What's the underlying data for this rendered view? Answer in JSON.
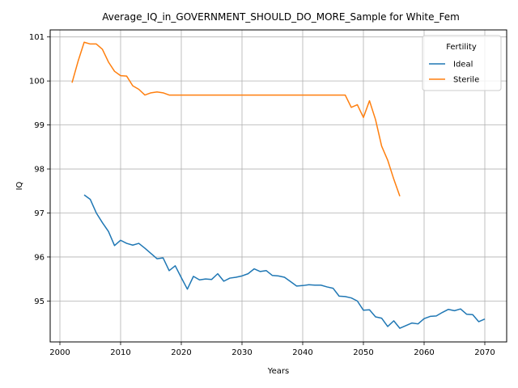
{
  "chart_data": {
    "type": "line",
    "title": "Average_IQ_in_GOVERNMENT_SHOULD_DO_MORE_Sample for White_Fem",
    "xlabel": "Years",
    "ylabel": "IQ",
    "xlim": [
      1998.4,
      2073.6
    ],
    "ylim": [
      94.07,
      101.16
    ],
    "x_ticks": [
      2000,
      2010,
      2020,
      2030,
      2040,
      2050,
      2060,
      2070
    ],
    "y_ticks": [
      95,
      96,
      97,
      98,
      99,
      100,
      101
    ],
    "grid": true,
    "legend": {
      "title": "Fertility",
      "position": "top-right"
    },
    "series": [
      {
        "name": "Ideal",
        "color": "#1f77b4",
        "points": [
          [
            2004,
            97.41
          ],
          [
            2005,
            97.31
          ],
          [
            2006,
            97.0
          ],
          [
            2007,
            96.78
          ],
          [
            2008,
            96.58
          ],
          [
            2009,
            96.26
          ],
          [
            2010,
            96.38
          ],
          [
            2011,
            96.31
          ],
          [
            2012,
            96.27
          ],
          [
            2013,
            96.31
          ],
          [
            2014,
            96.2
          ],
          [
            2015,
            96.08
          ],
          [
            2016,
            95.96
          ],
          [
            2017,
            95.98
          ],
          [
            2018,
            95.69
          ],
          [
            2019,
            95.8
          ],
          [
            2020,
            95.53
          ],
          [
            2021,
            95.27
          ],
          [
            2022,
            95.56
          ],
          [
            2023,
            95.48
          ],
          [
            2024,
            95.5
          ],
          [
            2025,
            95.49
          ],
          [
            2026,
            95.62
          ],
          [
            2027,
            95.45
          ],
          [
            2028,
            95.52
          ],
          [
            2029,
            95.54
          ],
          [
            2030,
            95.57
          ],
          [
            2031,
            95.62
          ],
          [
            2032,
            95.73
          ],
          [
            2033,
            95.67
          ],
          [
            2034,
            95.69
          ],
          [
            2035,
            95.58
          ],
          [
            2036,
            95.57
          ],
          [
            2037,
            95.54
          ],
          [
            2038,
            95.44
          ],
          [
            2039,
            95.34
          ],
          [
            2040,
            95.35
          ],
          [
            2041,
            95.37
          ],
          [
            2042,
            95.36
          ],
          [
            2043,
            95.36
          ],
          [
            2044,
            95.32
          ],
          [
            2045,
            95.29
          ],
          [
            2046,
            95.11
          ],
          [
            2047,
            95.1
          ],
          [
            2048,
            95.07
          ],
          [
            2049,
            95.0
          ],
          [
            2050,
            94.79
          ],
          [
            2051,
            94.8
          ],
          [
            2052,
            94.64
          ],
          [
            2053,
            94.61
          ],
          [
            2054,
            94.42
          ],
          [
            2055,
            94.55
          ],
          [
            2056,
            94.38
          ],
          [
            2057,
            94.44
          ],
          [
            2058,
            94.5
          ],
          [
            2059,
            94.48
          ],
          [
            2060,
            94.6
          ],
          [
            2061,
            94.65
          ],
          [
            2062,
            94.66
          ],
          [
            2063,
            94.74
          ],
          [
            2064,
            94.81
          ],
          [
            2065,
            94.78
          ],
          [
            2066,
            94.82
          ],
          [
            2067,
            94.7
          ],
          [
            2068,
            94.69
          ],
          [
            2069,
            94.53
          ],
          [
            2070,
            94.59
          ]
        ]
      },
      {
        "name": "Sterile",
        "color": "#ff7f0e",
        "points": [
          [
            2002,
            99.96
          ],
          [
            2003,
            100.45
          ],
          [
            2004,
            100.88
          ],
          [
            2005,
            100.84
          ],
          [
            2006,
            100.84
          ],
          [
            2007,
            100.72
          ],
          [
            2008,
            100.43
          ],
          [
            2009,
            100.22
          ],
          [
            2010,
            100.12
          ],
          [
            2011,
            100.11
          ],
          [
            2012,
            99.89
          ],
          [
            2013,
            99.81
          ],
          [
            2014,
            99.68
          ],
          [
            2015,
            99.73
          ],
          [
            2016,
            99.75
          ],
          [
            2017,
            99.73
          ],
          [
            2018,
            99.68
          ],
          [
            2019,
            99.68
          ],
          [
            2020,
            99.68
          ],
          [
            2021,
            99.68
          ],
          [
            2022,
            99.68
          ],
          [
            2023,
            99.68
          ],
          [
            2024,
            99.68
          ],
          [
            2025,
            99.68
          ],
          [
            2026,
            99.68
          ],
          [
            2027,
            99.68
          ],
          [
            2028,
            99.68
          ],
          [
            2029,
            99.68
          ],
          [
            2030,
            99.68
          ],
          [
            2031,
            99.68
          ],
          [
            2032,
            99.68
          ],
          [
            2033,
            99.68
          ],
          [
            2034,
            99.68
          ],
          [
            2035,
            99.68
          ],
          [
            2036,
            99.68
          ],
          [
            2037,
            99.68
          ],
          [
            2038,
            99.68
          ],
          [
            2039,
            99.68
          ],
          [
            2040,
            99.68
          ],
          [
            2041,
            99.68
          ],
          [
            2042,
            99.68
          ],
          [
            2043,
            99.68
          ],
          [
            2044,
            99.68
          ],
          [
            2045,
            99.68
          ],
          [
            2046,
            99.68
          ],
          [
            2047,
            99.68
          ],
          [
            2048,
            99.4
          ],
          [
            2049,
            99.46
          ],
          [
            2050,
            99.17
          ],
          [
            2051,
            99.55
          ],
          [
            2052,
            99.12
          ],
          [
            2053,
            98.52
          ],
          [
            2054,
            98.2
          ],
          [
            2055,
            97.77
          ],
          [
            2056,
            97.38
          ]
        ]
      }
    ]
  }
}
